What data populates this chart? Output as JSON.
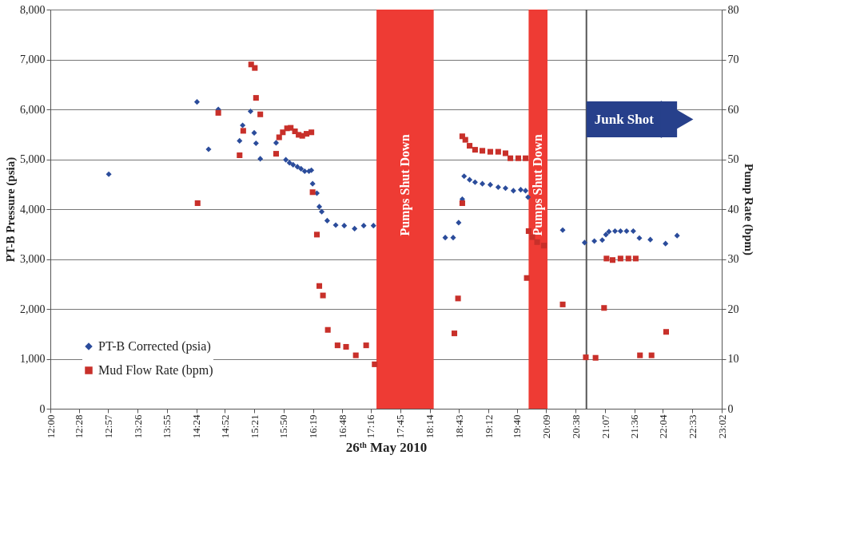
{
  "chart_data": {
    "type": "scatter",
    "xlabel": "26ᵗʰ May 2010",
    "ylabel": "PT-B Pressure (psia)",
    "y2label": "Pump Rate (bpm)",
    "xlim": [
      12,
      23.0333
    ],
    "xticks": [
      {
        "value": 12,
        "label": "12:00"
      },
      {
        "value": 12.4667,
        "label": "12:28"
      },
      {
        "value": 12.95,
        "label": "12:57"
      },
      {
        "value": 13.4333,
        "label": "13:26"
      },
      {
        "value": 13.9167,
        "label": "13:55"
      },
      {
        "value": 14.4,
        "label": "14:24"
      },
      {
        "value": 14.8667,
        "label": "14:52"
      },
      {
        "value": 15.35,
        "label": "15:21"
      },
      {
        "value": 15.8333,
        "label": "15:50"
      },
      {
        "value": 16.3167,
        "label": "16:19"
      },
      {
        "value": 16.8,
        "label": "16:48"
      },
      {
        "value": 17.2667,
        "label": "17:16"
      },
      {
        "value": 17.75,
        "label": "17:45"
      },
      {
        "value": 18.2333,
        "label": "18:14"
      },
      {
        "value": 18.7167,
        "label": "18:43"
      },
      {
        "value": 19.2,
        "label": "19:12"
      },
      {
        "value": 19.6667,
        "label": "19:40"
      },
      {
        "value": 20.15,
        "label": "20:09"
      },
      {
        "value": 20.6333,
        "label": "20:38"
      },
      {
        "value": 21.1167,
        "label": "21:07"
      },
      {
        "value": 21.6,
        "label": "21:36"
      },
      {
        "value": 22.0667,
        "label": "22:04"
      },
      {
        "value": 22.55,
        "label": "22:33"
      },
      {
        "value": 23.0333,
        "label": "23:02"
      }
    ],
    "ylim": [
      0,
      8000
    ],
    "yticks": [
      {
        "value": 0,
        "label": "0"
      },
      {
        "value": 1000,
        "label": "1,000"
      },
      {
        "value": 2000,
        "label": "2,000"
      },
      {
        "value": 3000,
        "label": "3,000"
      },
      {
        "value": 4000,
        "label": "4,000"
      },
      {
        "value": 5000,
        "label": "5,000"
      },
      {
        "value": 6000,
        "label": "6,000"
      },
      {
        "value": 7000,
        "label": "7,000"
      },
      {
        "value": 8000,
        "label": "8,000"
      }
    ],
    "y2lim": [
      0,
      80
    ],
    "y2ticks": [
      0,
      10,
      20,
      30,
      40,
      50,
      60,
      70,
      80
    ],
    "grid": "y",
    "legend": "bottom left",
    "series": [
      {
        "name": "PT-B Corrected (psia)",
        "color": "#2b4c9b",
        "marker": "diamond",
        "x": [
          12.96,
          14.41,
          14.6,
          14.76,
          15.11,
          15.16,
          15.29,
          15.35,
          15.38,
          15.45,
          15.71,
          15.87,
          15.93,
          15.99,
          16.06,
          16.12,
          16.18,
          16.25,
          16.29,
          16.31,
          16.38,
          16.42,
          16.46,
          16.55,
          16.69,
          16.83,
          17.0,
          17.15,
          17.31,
          18.49,
          18.62,
          18.71,
          18.77,
          18.8,
          18.89,
          18.98,
          19.1,
          19.23,
          19.36,
          19.48,
          19.61,
          19.73,
          19.81,
          19.85,
          20.42,
          20.78,
          20.94,
          21.07,
          21.13,
          21.18,
          21.28,
          21.37,
          21.47,
          21.58,
          21.68,
          21.86,
          22.11,
          22.3
        ],
        "values": [
          4700,
          6150,
          5200,
          6000,
          5370,
          5680,
          5960,
          5530,
          5320,
          5010,
          5330,
          4990,
          4930,
          4890,
          4850,
          4810,
          4760,
          4760,
          4780,
          4510,
          4320,
          4050,
          3950,
          3770,
          3680,
          3670,
          3610,
          3670,
          3670,
          3430,
          3430,
          3730,
          4200,
          4660,
          4590,
          4540,
          4510,
          4490,
          4440,
          4420,
          4370,
          4390,
          4370,
          4240,
          3580,
          3330,
          3360,
          3380,
          3490,
          3550,
          3560,
          3560,
          3560,
          3560,
          3420,
          3390,
          3310,
          3470
        ]
      },
      {
        "name": "Mud Flow Rate (bpm)",
        "color": "#c8302a",
        "marker": "square",
        "axis": "y2",
        "x": [
          14.42,
          14.76,
          15.11,
          15.17,
          15.3,
          15.36,
          15.38,
          15.45,
          15.71,
          15.76,
          15.82,
          15.89,
          15.95,
          16.02,
          16.08,
          16.14,
          16.21,
          16.29,
          16.31,
          16.38,
          16.42,
          16.48,
          16.56,
          16.72,
          16.86,
          17.02,
          17.19,
          17.33,
          18.64,
          18.7,
          18.77,
          18.77,
          18.82,
          18.89,
          18.98,
          19.1,
          19.23,
          19.36,
          19.48,
          19.56,
          19.69,
          19.81,
          19.83,
          19.86,
          19.92,
          20.0,
          20.11,
          20.42,
          20.8,
          20.96,
          21.1,
          21.14,
          21.24,
          21.37,
          21.5,
          21.62,
          21.69,
          21.88,
          22.12
        ],
        "values": [
          41.2,
          59.3,
          50.8,
          55.7,
          69.0,
          68.3,
          62.3,
          59.0,
          51.1,
          54.4,
          55.4,
          56.2,
          56.3,
          55.6,
          54.9,
          54.7,
          55.1,
          55.4,
          43.4,
          34.9,
          24.6,
          22.7,
          15.8,
          12.7,
          12.4,
          10.7,
          12.7,
          8.9,
          15.1,
          22.1,
          41.2,
          54.6,
          53.9,
          52.7,
          51.9,
          51.7,
          51.5,
          51.5,
          51.2,
          50.2,
          50.2,
          50.2,
          26.2,
          35.6,
          34.4,
          33.4,
          32.7,
          20.9,
          10.3,
          10.2,
          20.2,
          30.1,
          29.8,
          30.1,
          30.1,
          30.1,
          10.7,
          10.7,
          15.4
        ]
      }
    ],
    "bands": [
      {
        "axis": "x",
        "from": 17.36,
        "to": 18.3,
        "label": "Pumps Shut Down",
        "color": "#ee3b34"
      },
      {
        "axis": "x",
        "from": 19.86,
        "to": 20.17,
        "label": "Pumps Shut Down",
        "color": "#ee3b34"
      }
    ],
    "ref_lines": [
      {
        "axis": "x",
        "value": 20.81,
        "label": "Junk Shot",
        "color": "#555555"
      }
    ]
  }
}
